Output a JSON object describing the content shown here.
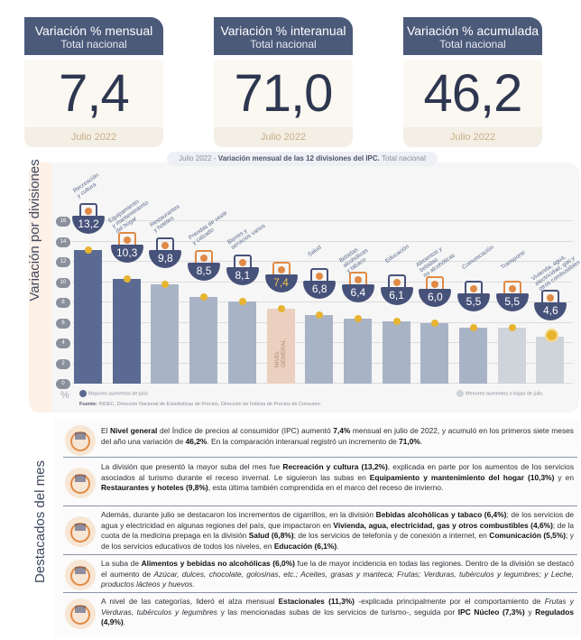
{
  "kpis": [
    {
      "title": "Variación % mensual",
      "subtitle": "Total nacional",
      "value": "7,4",
      "period": "Julio 2022"
    },
    {
      "title": "Variación % interanual",
      "subtitle": "Total nacional",
      "value": "71,0",
      "period": "Julio 2022"
    },
    {
      "title": "Variación % acumulada",
      "subtitle": "Total nacional",
      "value": "46,2",
      "period": "Julio 2022"
    }
  ],
  "chart_header": {
    "period": "Julio 2022",
    "separator": " - ",
    "title": "Variación mensual de las 12 divisiones del IPC.",
    "scope": " Total nacional"
  },
  "chart_side_label": "Variación por divisiones",
  "chart_data": {
    "type": "bar",
    "title": "Julio 2022 - Variación mensual de las 12 divisiones del IPC. Total nacional",
    "xlabel": "",
    "ylabel": "%",
    "ylim": [
      0,
      16
    ],
    "yticks": [
      "0",
      "2",
      "4",
      "6",
      "8",
      "10",
      "12",
      "14",
      "16"
    ],
    "grid": true,
    "categories": [
      "Recreación y cultura",
      "Equipamiento y mantenimiento del hogar",
      "Restaurantes y hoteles",
      "Prendas de vestir y calzado",
      "Bienes y servicios varios",
      "Nivel general",
      "Salud",
      "Bebidas alcohólicas y tabaco",
      "Educación",
      "Alimentos y bebidas no alcohólicas",
      "Comunicación",
      "Transporte",
      "Vivienda, agua, electricidad, gas y otros combustibles"
    ],
    "values": [
      13.2,
      10.3,
      9.8,
      8.5,
      8.1,
      7.4,
      6.8,
      6.4,
      6.1,
      6.0,
      5.5,
      5.5,
      4.6
    ],
    "value_labels": [
      "13,2",
      "10,3",
      "9,8",
      "8,5",
      "8,1",
      "7,4",
      "6,8",
      "6,4",
      "6,1",
      "6,0",
      "5,5",
      "5,5",
      "4,6"
    ],
    "bar_groups": [
      "mayores",
      "mayores",
      "medio",
      "medio",
      "medio",
      "nivel",
      "medio",
      "medio",
      "medio",
      "medio",
      "medio",
      "menores",
      "menores"
    ],
    "legend": [
      {
        "label": "Mayores aumentos de julio.",
        "color": "#5a6a92",
        "position": "bottom-left"
      },
      {
        "label": "Menores aumentos o bajas de julio.",
        "color": "#cfd3da",
        "position": "bottom-right"
      }
    ],
    "annotations": [
      "NIVEL GENERAL"
    ]
  },
  "bar_labels": [
    "Recreación\ny cultura",
    "Equipamiento\ny mantenimiento\ndel hogar",
    "Restaurantes\ny hoteles",
    "Prendas de vestir\ny calzado",
    "Bienes y\nservicios varios",
    "",
    "Salud",
    "Bebidas\nalcohólicas\ny tabaco",
    "Educación",
    "Alimentos y\nbebidas\nno alcohólicas",
    "Comunicación",
    "Transporte",
    "Vivienda, agua,\nelectricidad, gas y\notros combustibles"
  ],
  "nivel_general_label": "NIVEL\nGENERAL",
  "y_unit": "%",
  "legend": {
    "left": "Mayores aumentos de julio.",
    "right": "Menores aumentos o bajas de julio."
  },
  "source": {
    "label": "Fuente:",
    "text": " INDEC, Dirección Nacional de Estadísticas de Precios, Dirección de Índices de Precios de Consumo."
  },
  "colors": {
    "header_navy": "#4c5a7a",
    "bar_dark": "#5a6a92",
    "bar_mid": "#a9b3c6",
    "bar_light": "#cfd3da",
    "bar_nivel": "#ebcfbf",
    "dot_gold": "#e8b430",
    "badge_navy": "#47527a",
    "accent_orange": "#e08a45"
  },
  "destacados": {
    "side_label": "Destacados del mes",
    "items": [
      {
        "icon": "basket-icon",
        "parts": [
          {
            "t": "El "
          },
          {
            "b": "Nivel general"
          },
          {
            "t": " del Índice de precios al consumidor (IPC) aumentó "
          },
          {
            "b": "7,4%"
          },
          {
            "t": " mensual en julio de 2022, y acumuló en los primeros siete meses del año una variación de "
          },
          {
            "b": "46,2%"
          },
          {
            "t": ". En la comparación interanual registró un incremento de "
          },
          {
            "b": "71,0%"
          },
          {
            "t": "."
          }
        ]
      },
      {
        "icon": "beach-umbrella-icon",
        "parts": [
          {
            "t": "La división que presentó la mayor suba del mes fue "
          },
          {
            "b": "Recreación y cultura (13,2%)"
          },
          {
            "t": ", explicada en parte por los aumentos de los servicios asociados al turismo durante el receso invernal. Le siguieron las subas en "
          },
          {
            "b": "Equipamiento y mantenimiento del hogar (10,3%)"
          },
          {
            "t": " y en "
          },
          {
            "b": "Restaurantes y hoteles (9,8%)"
          },
          {
            "t": ", esta última también comprendida en el marco del receso de invierno."
          }
        ]
      },
      {
        "icon": "bottle-cigarette-icon",
        "parts": [
          {
            "t": "Además, durante julio se destacaron los incrementos de cigarrillos, en la división "
          },
          {
            "b": "Bebidas alcohólicas y tabaco (6,4%)"
          },
          {
            "t": "; de los servicios de agua y electricidad en algunas regiones del país, que impactaron en "
          },
          {
            "b": "Vivienda, agua, electricidad, gas y otros combustibles (4,6%)"
          },
          {
            "t": "; de la cuota de la medicina prepaga en la división "
          },
          {
            "b": "Salud (6,8%)"
          },
          {
            "t": "; de los servicios de telefonía y de conexión a internet, en "
          },
          {
            "b": "Comunicación (5,5%)"
          },
          {
            "t": "; y de los servicios educativos de todos los niveles, en "
          },
          {
            "b": "Educación (6,1%)"
          },
          {
            "t": "."
          }
        ]
      },
      {
        "icon": "food-chicken-icon",
        "parts": [
          {
            "t": "La suba de "
          },
          {
            "b": "Alimentos y bebidas no alcohólicas (6,0%)"
          },
          {
            "t": " fue la de mayor incidencia en todas las regiones. Dentro de la división se destacó el aumento de "
          },
          {
            "i": "Azúcar, dulces, chocolate, golosinas, etc.; Aceites, grasas y manteca; Frutas; Verduras, tubérculos y legumbres; y Leche, productos lácteos y huevos."
          }
        ]
      },
      {
        "icon": "fruit-vegetables-icon",
        "parts": [
          {
            "t": "A nivel de las categorías, lideró el alza mensual "
          },
          {
            "b": "Estacionales (11,3%)"
          },
          {
            "t": " -explicada principalmente por el comportamiento de "
          },
          {
            "i": "Frutas y Verduras, tubérculos y legumbres"
          },
          {
            "t": " y las mencionadas subas de los servicios de turismo-, seguida por "
          },
          {
            "b": "IPC Núcleo (7,3%)"
          },
          {
            "t": " y "
          },
          {
            "b": "Regulados (4,9%)"
          },
          {
            "t": "."
          }
        ]
      }
    ]
  }
}
